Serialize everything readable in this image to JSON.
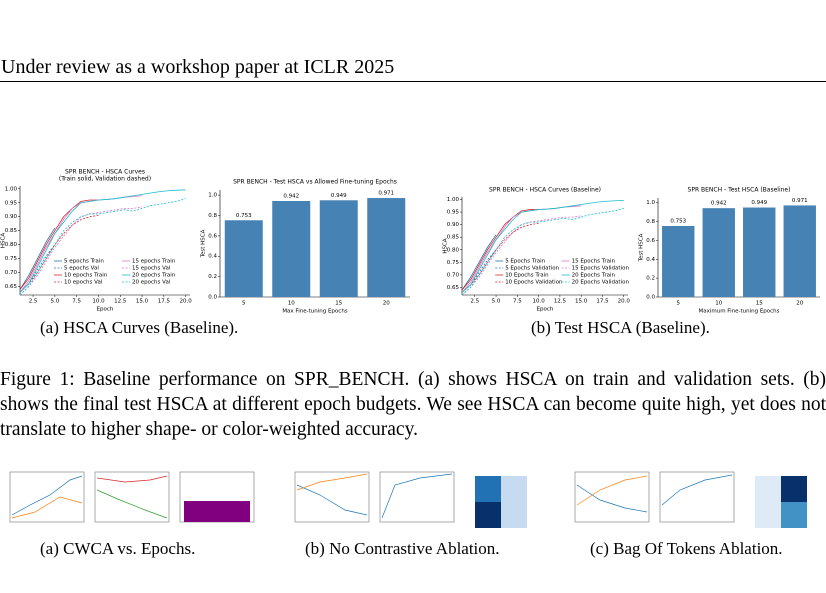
{
  "header": {
    "title": "Under review as a workshop paper at ICLR 2025"
  },
  "figure1": {
    "subcaptions": [
      "(a) HSCA Curves (Baseline).",
      "(b) Test HSCA (Baseline)."
    ],
    "caption": "Figure 1: Baseline performance on SPR_BENCH. (a) shows HSCA on train and validation sets. (b) shows the final test HSCA at different epoch budgets. We see HSCA can become quite high, yet does not translate to higher shape- or color-weighted accuracy."
  },
  "figure2": {
    "subcaptions": [
      "(a) CWCA vs. Epochs.",
      "(b) No Contrastive Ablation.",
      "(c) Bag Of Tokens Ablation."
    ]
  },
  "chart_data": [
    {
      "type": "line",
      "title": "SPR BENCH - HSCA Curves",
      "subtitle": "(Train solid, Validation dashed)",
      "x_label": "Epoch",
      "y_label": "HSCA",
      "x": [
        1,
        2,
        3,
        4,
        5,
        6,
        7,
        8,
        9,
        10,
        11,
        12,
        13,
        14,
        15,
        16,
        17,
        18,
        19,
        20
      ],
      "xlim": [
        1,
        20.5
      ],
      "xticks": [
        2.5,
        {
          "value": 5,
          "label": "5.0"
        },
        7.5,
        {
          "value": 10,
          "label": "10.0"
        },
        12.5,
        {
          "value": 15,
          "label": "15.0"
        },
        17.5,
        {
          "value": 20,
          "label": "20.0"
        }
      ],
      "ylim": [
        0.62,
        1.01
      ],
      "yticks": [
        0.65,
        {
          "value": 0.7,
          "label": "0.70"
        },
        0.75,
        {
          "value": 0.8,
          "label": "0.80"
        },
        0.85,
        {
          "value": 0.9,
          "label": "0.90"
        },
        0.95,
        {
          "value": 1,
          "label": "1.00"
        }
      ],
      "series": [
        {
          "name": "5 epochs Train",
          "color": "#1f77b4",
          "style": "solid",
          "values": [
            0.64,
            0.69,
            0.75,
            0.81,
            0.86,
            null,
            null,
            null,
            null,
            null,
            null,
            null,
            null,
            null,
            null,
            null,
            null,
            null,
            null,
            null
          ]
        },
        {
          "name": "5 epochs Val",
          "color": "#1f77b4",
          "style": "dashed",
          "values": [
            0.63,
            0.66,
            0.71,
            0.76,
            0.8,
            null,
            null,
            null,
            null,
            null,
            null,
            null,
            null,
            null,
            null,
            null,
            null,
            null,
            null,
            null
          ]
        },
        {
          "name": "10 epochs Train",
          "color": "#d62728",
          "style": "solid",
          "values": [
            0.64,
            0.68,
            0.74,
            0.8,
            0.85,
            0.9,
            0.93,
            0.955,
            0.96,
            0.96,
            null,
            null,
            null,
            null,
            null,
            null,
            null,
            null,
            null,
            null
          ]
        },
        {
          "name": "10 epochs Val",
          "color": "#d62728",
          "style": "dashed",
          "values": [
            0.63,
            0.66,
            0.7,
            0.75,
            0.8,
            0.84,
            0.87,
            0.89,
            0.9,
            0.905,
            null,
            null,
            null,
            null,
            null,
            null,
            null,
            null,
            null,
            null
          ]
        },
        {
          "name": "15 epochs Train",
          "color": "#e377c2",
          "style": "solid",
          "values": [
            0.63,
            0.67,
            0.73,
            0.79,
            0.84,
            0.89,
            0.93,
            0.95,
            0.955,
            0.96,
            0.962,
            0.965,
            0.97,
            0.972,
            0.975,
            null,
            null,
            null,
            null,
            null
          ]
        },
        {
          "name": "15 epochs Val",
          "color": "#e377c2",
          "style": "dashed",
          "values": [
            0.62,
            0.65,
            0.69,
            0.74,
            0.79,
            0.83,
            0.87,
            0.9,
            0.91,
            0.915,
            0.92,
            0.925,
            0.93,
            0.93,
            0.935,
            null,
            null,
            null,
            null,
            null
          ]
        },
        {
          "name": "20 epochs Train",
          "color": "#17becf",
          "style": "solid",
          "values": [
            0.63,
            0.66,
            0.72,
            0.78,
            0.84,
            0.88,
            0.92,
            0.95,
            0.955,
            0.96,
            0.962,
            0.965,
            0.97,
            0.975,
            0.98,
            0.985,
            0.99,
            0.993,
            0.995,
            0.996
          ]
        },
        {
          "name": "20 epochs Val",
          "color": "#17becf",
          "style": "dashed",
          "values": [
            0.62,
            0.65,
            0.7,
            0.75,
            0.8,
            0.85,
            0.88,
            0.9,
            0.91,
            0.91,
            0.915,
            0.92,
            0.925,
            0.92,
            0.93,
            0.94,
            0.945,
            0.95,
            0.955,
            0.965
          ]
        }
      ]
    },
    {
      "type": "bar",
      "title": "SPR BENCH - Test HSCA vs Allowed Fine-tuning Epochs",
      "x_label": "Max Fine-tuning Epochs",
      "y_label": "Test HSCA",
      "categories": [
        "5",
        "10",
        "15",
        "20"
      ],
      "values": [
        0.753,
        0.942,
        0.949,
        0.971
      ],
      "color": "#4682b4",
      "ylim": [
        0,
        1.05
      ],
      "yticks": [
        {
          "value": 0,
          "label": "0.0"
        },
        0.2,
        0.4,
        0.6,
        0.8,
        {
          "value": 1,
          "label": "1.0"
        }
      ]
    },
    {
      "type": "line",
      "title": "SPR BENCH - HSCA Curves (Baseline)",
      "x_label": "Epoch",
      "y_label": "HSCA",
      "x": [
        1,
        2,
        3,
        4,
        5,
        6,
        7,
        8,
        9,
        10,
        11,
        12,
        13,
        14,
        15,
        16,
        17,
        18,
        19,
        20
      ],
      "xlim": [
        1,
        20.5
      ],
      "xticks": [
        2.5,
        {
          "value": 5,
          "label": "5.0"
        },
        7.5,
        {
          "value": 10,
          "label": "10.0"
        },
        12.5,
        {
          "value": 15,
          "label": "15.0"
        },
        17.5,
        {
          "value": 20,
          "label": "20.0"
        }
      ],
      "ylim": [
        0.62,
        1.01
      ],
      "yticks": [
        0.65,
        {
          "value": 0.7,
          "label": "0.70"
        },
        0.75,
        {
          "value": 0.8,
          "label": "0.80"
        },
        0.85,
        {
          "value": 0.9,
          "label": "0.90"
        },
        0.95,
        {
          "value": 1,
          "label": "1.00"
        }
      ],
      "series": [
        {
          "name": "5 Epochs Train",
          "color": "#1f77b4",
          "style": "solid",
          "values": [
            0.64,
            0.69,
            0.75,
            0.81,
            0.86,
            null,
            null,
            null,
            null,
            null,
            null,
            null,
            null,
            null,
            null,
            null,
            null,
            null,
            null,
            null
          ]
        },
        {
          "name": "5 Epochs Validation",
          "color": "#1f77b4",
          "style": "dashed",
          "values": [
            0.63,
            0.66,
            0.71,
            0.76,
            0.8,
            null,
            null,
            null,
            null,
            null,
            null,
            null,
            null,
            null,
            null,
            null,
            null,
            null,
            null,
            null
          ]
        },
        {
          "name": "10 Epochs Train",
          "color": "#d62728",
          "style": "solid",
          "values": [
            0.64,
            0.68,
            0.74,
            0.8,
            0.85,
            0.9,
            0.93,
            0.955,
            0.96,
            0.96,
            null,
            null,
            null,
            null,
            null,
            null,
            null,
            null,
            null,
            null
          ]
        },
        {
          "name": "10 Epochs Validation",
          "color": "#d62728",
          "style": "dashed",
          "values": [
            0.63,
            0.66,
            0.7,
            0.75,
            0.8,
            0.84,
            0.87,
            0.89,
            0.9,
            0.905,
            null,
            null,
            null,
            null,
            null,
            null,
            null,
            null,
            null,
            null
          ]
        },
        {
          "name": "15 Epochs Train",
          "color": "#e377c2",
          "style": "solid",
          "values": [
            0.63,
            0.67,
            0.73,
            0.79,
            0.84,
            0.89,
            0.93,
            0.95,
            0.955,
            0.96,
            0.962,
            0.965,
            0.97,
            0.972,
            0.975,
            null,
            null,
            null,
            null,
            null
          ]
        },
        {
          "name": "15 Epochs Validation",
          "color": "#e377c2",
          "style": "dashed",
          "values": [
            0.62,
            0.65,
            0.69,
            0.74,
            0.79,
            0.83,
            0.87,
            0.9,
            0.91,
            0.915,
            0.92,
            0.925,
            0.93,
            0.93,
            0.935,
            null,
            null,
            null,
            null,
            null
          ]
        },
        {
          "name": "20 Epochs Train",
          "color": "#17becf",
          "style": "solid",
          "values": [
            0.63,
            0.66,
            0.72,
            0.78,
            0.84,
            0.88,
            0.92,
            0.95,
            0.955,
            0.96,
            0.962,
            0.965,
            0.97,
            0.975,
            0.98,
            0.985,
            0.99,
            0.993,
            0.995,
            0.996
          ]
        },
        {
          "name": "20 Epochs Validation",
          "color": "#17becf",
          "style": "dashed",
          "values": [
            0.62,
            0.65,
            0.7,
            0.75,
            0.8,
            0.85,
            0.88,
            0.9,
            0.91,
            0.91,
            0.915,
            0.92,
            0.925,
            0.92,
            0.93,
            0.94,
            0.945,
            0.95,
            0.955,
            0.965
          ]
        }
      ]
    },
    {
      "type": "bar",
      "title": "SPR BENCH - Test HSCA (Baseline)",
      "x_label": "Maximum Fine-tuning Epochs",
      "y_label": "Test HSCA",
      "categories": [
        "5",
        "10",
        "15",
        "20"
      ],
      "values": [
        0.753,
        0.942,
        0.949,
        0.971
      ],
      "color": "#4682b4",
      "ylim": [
        0,
        1.05
      ],
      "yticks": [
        {
          "value": 0,
          "label": "0.0"
        },
        0.2,
        0.4,
        0.6,
        0.8,
        {
          "value": 1,
          "label": "1.0"
        }
      ]
    }
  ]
}
